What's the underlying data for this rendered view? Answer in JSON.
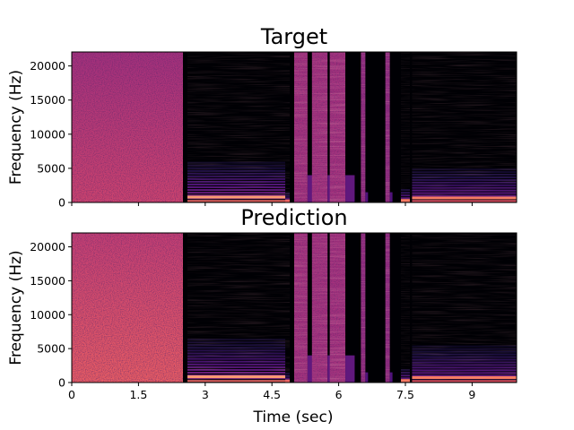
{
  "chart_data": [
    {
      "type": "heatmap",
      "title": "Target",
      "ylabel": "Frequency (Hz)",
      "xlabel": "",
      "xlim": [
        0,
        10
      ],
      "ylim": [
        0,
        22050
      ],
      "yticks": [
        0,
        5000,
        10000,
        15000,
        20000
      ],
      "xticks": [
        0,
        1.5,
        3,
        4.5,
        6,
        7.5,
        9
      ],
      "show_xticklabels": false,
      "colormap": "magma",
      "segments": [
        {
          "kind": "noise",
          "start": 0.0,
          "end": 2.5,
          "level": 0.6
        },
        {
          "kind": "tonal",
          "start": 2.6,
          "end": 4.8,
          "harmonic_top_hz": 6000,
          "level": 0.45
        },
        {
          "kind": "tonal",
          "start": 4.8,
          "end": 4.9,
          "harmonic_top_hz": 1500,
          "level": 0.35
        },
        {
          "kind": "burst",
          "start": 5.0,
          "end": 5.3,
          "level": 0.55
        },
        {
          "kind": "burst",
          "start": 5.4,
          "end": 5.75,
          "level": 0.55
        },
        {
          "kind": "burst",
          "start": 5.8,
          "end": 6.15,
          "level": 0.55
        },
        {
          "kind": "burst",
          "start": 6.5,
          "end": 6.6,
          "level": 0.5
        },
        {
          "kind": "burst",
          "start": 7.05,
          "end": 7.15,
          "level": 0.5
        },
        {
          "kind": "tonal",
          "start": 7.4,
          "end": 7.6,
          "harmonic_top_hz": 2000,
          "level": 0.4
        },
        {
          "kind": "tonal",
          "start": 7.65,
          "end": 10.0,
          "harmonic_top_hz": 5000,
          "level": 0.4
        }
      ]
    },
    {
      "type": "heatmap",
      "title": "Prediction",
      "ylabel": "Frequency (Hz)",
      "xlabel": "Time (sec)",
      "xlim": [
        0,
        10
      ],
      "ylim": [
        0,
        22050
      ],
      "yticks": [
        0,
        5000,
        10000,
        15000,
        20000
      ],
      "xticks": [
        0,
        1.5,
        3,
        4.5,
        6,
        7.5,
        9
      ],
      "show_xticklabels": true,
      "colormap": "magma",
      "segments": [
        {
          "kind": "noise",
          "start": 0.0,
          "end": 2.5,
          "level": 0.7
        },
        {
          "kind": "tonal",
          "start": 2.6,
          "end": 4.8,
          "harmonic_top_hz": 6500,
          "level": 0.45
        },
        {
          "kind": "tonal",
          "start": 4.8,
          "end": 4.9,
          "harmonic_top_hz": 1500,
          "level": 0.35
        },
        {
          "kind": "burst",
          "start": 5.0,
          "end": 5.3,
          "level": 0.55
        },
        {
          "kind": "burst",
          "start": 5.4,
          "end": 5.75,
          "level": 0.55
        },
        {
          "kind": "burst",
          "start": 5.8,
          "end": 6.15,
          "level": 0.55
        },
        {
          "kind": "burst",
          "start": 6.5,
          "end": 6.6,
          "level": 0.5
        },
        {
          "kind": "burst",
          "start": 7.05,
          "end": 7.15,
          "level": 0.5
        },
        {
          "kind": "tonal",
          "start": 7.4,
          "end": 7.6,
          "harmonic_top_hz": 2000,
          "level": 0.4
        },
        {
          "kind": "tonal",
          "start": 7.65,
          "end": 10.0,
          "harmonic_top_hz": 5500,
          "level": 0.4
        }
      ]
    }
  ]
}
